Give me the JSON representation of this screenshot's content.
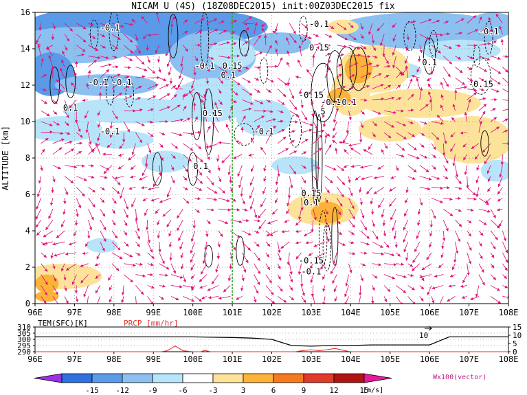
{
  "title": "NICAM U (4S) (18Z08DEC2015) init:00Z03DEC2015 fix",
  "chart_data": [
    {
      "type": "heatmap",
      "ylabel": "ALTITUDE [km]",
      "xlim": [
        96,
        108
      ],
      "ylim": [
        0,
        16
      ],
      "x_ticks": [
        96,
        97,
        98,
        99,
        100,
        101,
        102,
        103,
        104,
        105,
        106,
        107,
        108
      ],
      "x_tick_labels": [
        "96E",
        "97E",
        "98E",
        "99E",
        "100E",
        "101E",
        "102E",
        "103E",
        "104E",
        "105E",
        "106E",
        "107E",
        "108E"
      ],
      "y_ticks": [
        0,
        2,
        4,
        6,
        8,
        10,
        12,
        14,
        16
      ],
      "y_tick_labels": [
        "0",
        "2",
        "4",
        "6",
        "8",
        "10",
        "12",
        "14",
        "16"
      ],
      "grid": true,
      "marker_line_x": 101,
      "shading_levels": [
        -15,
        -12,
        -9,
        -6,
        -3,
        3,
        6,
        9,
        12,
        15
      ],
      "shading_colors": [
        "#9b30e6",
        "#2f6fe0",
        "#5a9ae8",
        "#8cc0f0",
        "#b8e4fa",
        "#ffffff",
        "#fde39a",
        "#fdb33a",
        "#f57a1e",
        "#e23a28",
        "#b01414",
        "#e8189a"
      ],
      "contour_labels": [
        {
          "x": 97.9,
          "y": 15.0,
          "text": "-0.1"
        },
        {
          "x": 97.6,
          "y": 12.0,
          "text": "-0.1"
        },
        {
          "x": 98.2,
          "y": 12.0,
          "text": "-0.1"
        },
        {
          "x": 96.9,
          "y": 10.6,
          "text": "0.1"
        },
        {
          "x": 97.9,
          "y": 9.3,
          "text": "-0.1"
        },
        {
          "x": 100.3,
          "y": 12.9,
          "text": "-0.1"
        },
        {
          "x": 100.5,
          "y": 10.3,
          "text": "0.15"
        },
        {
          "x": 100.2,
          "y": 7.4,
          "text": "0.1"
        },
        {
          "x": 101.0,
          "y": 12.9,
          "text": "0.15"
        },
        {
          "x": 100.9,
          "y": 12.4,
          "text": "0.1"
        },
        {
          "x": 101.8,
          "y": 9.3,
          "text": "-0.1"
        },
        {
          "x": 103.2,
          "y": 15.2,
          "text": "-0.1"
        },
        {
          "x": 103.2,
          "y": 13.9,
          "text": "0.15"
        },
        {
          "x": 103.0,
          "y": 11.3,
          "text": "-0.15"
        },
        {
          "x": 103.5,
          "y": 10.9,
          "text": "-0.1"
        },
        {
          "x": 103.3,
          "y": 10.4,
          "text": "5"
        },
        {
          "x": 103.9,
          "y": 10.9,
          "text": "-0.1"
        },
        {
          "x": 106.0,
          "y": 13.1,
          "text": "0.1"
        },
        {
          "x": 107.5,
          "y": 14.8,
          "text": "-0.1"
        },
        {
          "x": 107.3,
          "y": 11.9,
          "text": "-0.15"
        },
        {
          "x": 103.0,
          "y": 5.9,
          "text": "0.15"
        },
        {
          "x": 103.0,
          "y": 5.4,
          "text": "0.1"
        },
        {
          "x": 103.0,
          "y": 2.2,
          "text": "-0.15"
        },
        {
          "x": 103.0,
          "y": 1.6,
          "text": "-0.1"
        }
      ]
    },
    {
      "type": "line",
      "xlim": [
        96,
        108
      ],
      "left_label": "TEM(SFC)[K]",
      "right_label": "PRCP [mm/hr]",
      "left_ticks": [
        "310",
        "305",
        "300",
        "295",
        "290"
      ],
      "right_ticks": [
        "15",
        "10",
        "5",
        "0"
      ],
      "x_tick_labels": [
        "96E",
        "97E",
        "98E",
        "99E",
        "100E",
        "101E",
        "102E",
        "103E",
        "104E",
        "105E",
        "106E",
        "107E",
        "108E"
      ],
      "annotation": "10",
      "series": [
        {
          "color": "#000000",
          "x": [
            96,
            97,
            98,
            99,
            100,
            101,
            101.5,
            102,
            102.5,
            103,
            103.5,
            104,
            104.5,
            105,
            105.5,
            106,
            106.5,
            107,
            107.5,
            108
          ],
          "values": [
            302,
            302,
            302,
            302,
            302,
            301.5,
            301,
            300,
            295,
            294.5,
            295,
            295,
            295.5,
            295.5,
            295.5,
            295.5,
            302,
            302,
            302,
            302
          ]
        },
        {
          "color": "#e03030",
          "x": [
            96,
            99.2,
            99.35,
            99.55,
            99.75,
            100,
            100.2,
            100.3,
            100.45,
            102.6,
            102.7,
            103.0,
            103.2,
            103.4,
            103.6,
            103.9,
            104.0,
            108
          ],
          "values": [
            0,
            0,
            0.6,
            3.5,
            0.6,
            0,
            0,
            0.8,
            0,
            0,
            0.4,
            1.2,
            0.6,
            1.2,
            2.0,
            0.4,
            0,
            0
          ]
        }
      ]
    }
  ],
  "colorbar": {
    "labels": [
      "-15",
      "-12",
      "-9",
      "-6",
      "-3",
      "3",
      "6",
      "9",
      "12",
      "15"
    ],
    "unit": "[m/s]",
    "vector_note": "Wx100(vector)"
  }
}
